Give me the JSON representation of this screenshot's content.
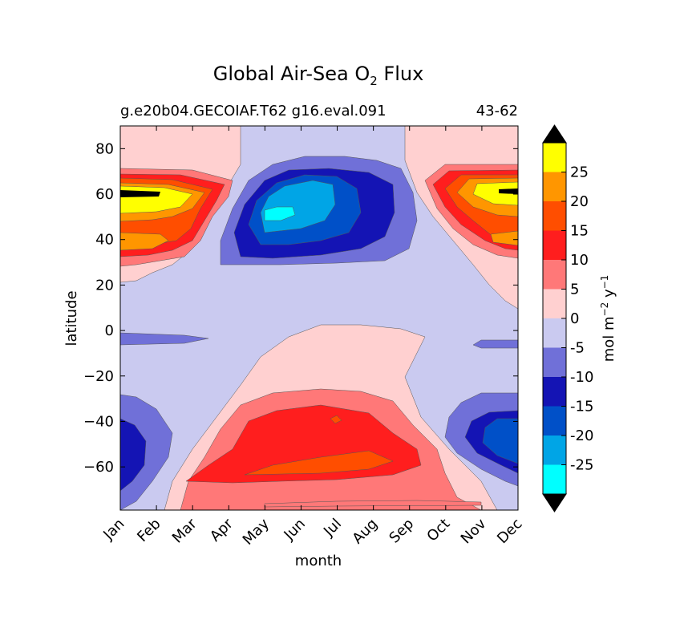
{
  "chart_data": {
    "type": "heatmap",
    "title_main": "Global Air-Sea O",
    "title_sub": "2",
    "title_tail": " Flux",
    "subtitle_left": "g.e20b04.GECOIAF.T62 g16.eval.091",
    "subtitle_right": "43-62",
    "xlabel": "month",
    "ylabel": "latitude",
    "x_ticks": [
      "Jan",
      "Feb",
      "Mar",
      "Apr",
      "May",
      "Jun",
      "Jul",
      "Aug",
      "Sep",
      "Oct",
      "Nov",
      "Dec"
    ],
    "y_ticks": [
      80,
      60,
      40,
      20,
      0,
      -20,
      -40,
      -60
    ],
    "y_tick_labels": [
      "80",
      "60",
      "40",
      "20",
      "0",
      "−20",
      "−40",
      "−60"
    ],
    "ylim": [
      -79,
      90
    ],
    "colorbar": {
      "label_base": "mol m",
      "label_exp1": "−2",
      "label_mid": " y",
      "label_exp2": "−1",
      "levels": [
        -30,
        -25,
        -20,
        -15,
        -10,
        -5,
        0,
        5,
        10,
        15,
        20,
        25,
        30
      ],
      "tick_values": [
        25,
        20,
        15,
        10,
        5,
        0,
        -5,
        -10,
        -15,
        -20,
        -25
      ],
      "tick_labels": [
        "25",
        "20",
        "15",
        "10",
        "5",
        "0",
        "-5",
        "-10",
        "-15",
        "-20",
        "-25"
      ],
      "colors": [
        "#00ffff",
        "#00a5e6",
        "#0050c8",
        "#1414b4",
        "#7070d8",
        "#cacaf0",
        "#ffd0d0",
        "#ff7878",
        "#ff1e1e",
        "#ff4e00",
        "#ff9600",
        "#ffff00"
      ],
      "under_color": "#000000",
      "over_color": "#000000"
    }
  }
}
